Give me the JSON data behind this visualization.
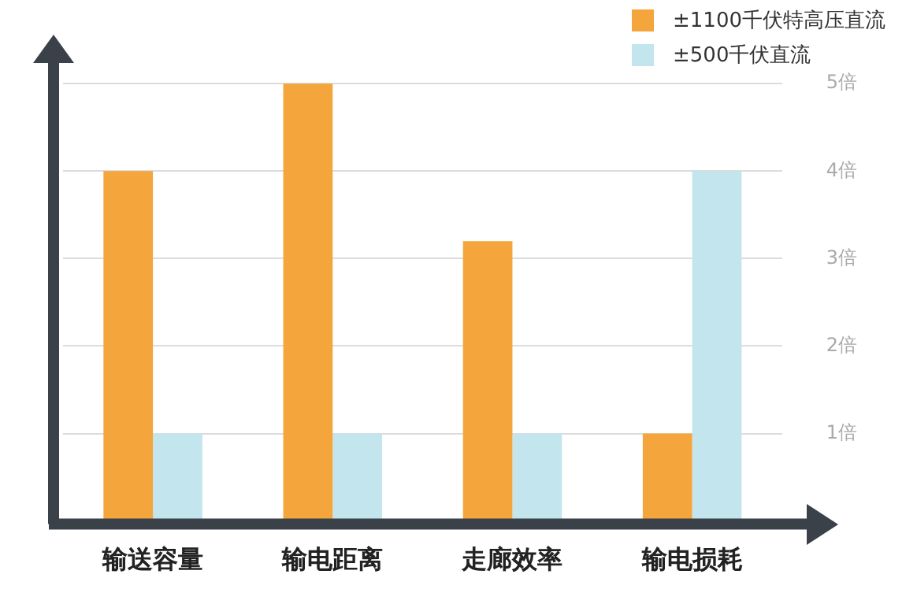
{
  "chart_data": {
    "type": "bar",
    "categories": [
      "输送容量",
      "输电距离",
      "走廊效率",
      "输电损耗"
    ],
    "series": [
      {
        "name": "±1100千伏特高压直流",
        "color": "#f4a53c",
        "values": [
          4,
          5,
          3.2,
          1
        ]
      },
      {
        "name": "±500千伏直流",
        "color": "#c2e5ee",
        "values": [
          1,
          1,
          1,
          4
        ]
      }
    ],
    "ylim": [
      0,
      5.2
    ],
    "yticks": [
      {
        "value": 1,
        "label": "1倍"
      },
      {
        "value": 2,
        "label": "2倍"
      },
      {
        "value": 3,
        "label": "3倍"
      },
      {
        "value": 4,
        "label": "4倍"
      },
      {
        "value": 5,
        "label": "5倍"
      }
    ],
    "grid": "y",
    "legend": "top right"
  }
}
